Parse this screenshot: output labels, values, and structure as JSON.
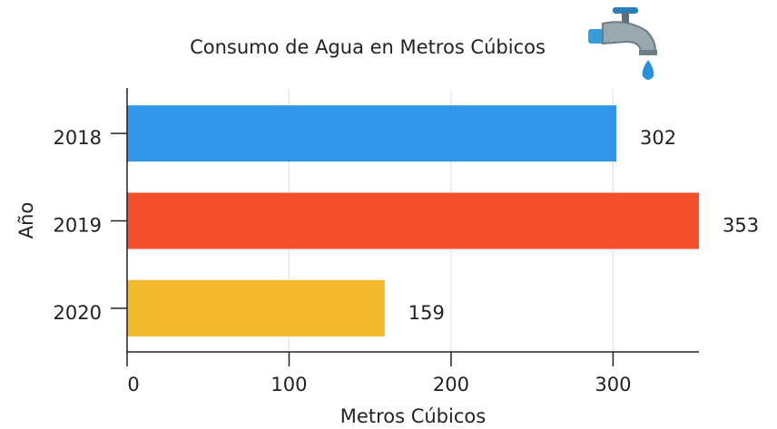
{
  "chart_data": {
    "type": "bar",
    "orientation": "horizontal",
    "title": "Consumo de Agua en Metros Cúbicos",
    "xlabel": "Metros Cúbicos",
    "ylabel": "Año",
    "categories": [
      "2018",
      "2019",
      "2020"
    ],
    "values": [
      302,
      353,
      159
    ],
    "colors": [
      "#3196e8",
      "#f5502c",
      "#f4b82c"
    ],
    "xlim": [
      0,
      353
    ],
    "xticks": [
      0,
      100,
      200,
      300
    ],
    "grid": true
  }
}
